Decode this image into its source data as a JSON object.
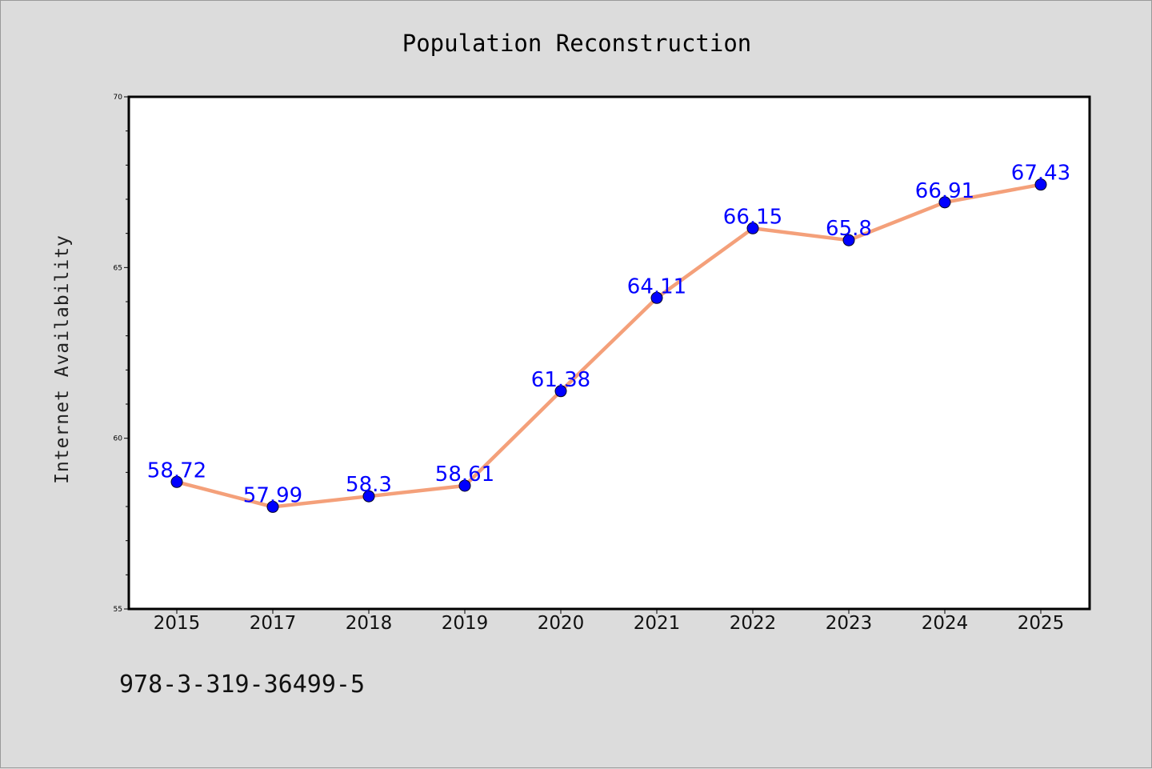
{
  "chart_data": {
    "type": "line",
    "title": "Population Reconstruction",
    "xlabel": "",
    "ylabel": "Internet Availability",
    "categories": [
      "2015",
      "2017",
      "2018",
      "2019",
      "2020",
      "2021",
      "2022",
      "2023",
      "2024",
      "2025"
    ],
    "values": [
      58.72,
      57.99,
      58.3,
      58.61,
      61.38,
      64.11,
      66.15,
      65.8,
      66.91,
      67.43
    ],
    "data_labels": [
      "58.72",
      "57.99",
      "58.3",
      "58.61",
      "61.38",
      "64.11",
      "66.15",
      "65.8",
      "66.91",
      "67.43"
    ],
    "ylim": [
      55,
      70
    ],
    "y_ticks": [
      "55",
      "60",
      "65",
      "70"
    ],
    "grid": false,
    "legend": "none",
    "colors": {
      "line": "#f4a07a",
      "marker": "#0000ff",
      "label": "#0000ff",
      "background": "#dcdcdc",
      "plot_background": "#ffffff"
    }
  },
  "footer": {
    "isbn": "978-3-319-36499-5"
  }
}
